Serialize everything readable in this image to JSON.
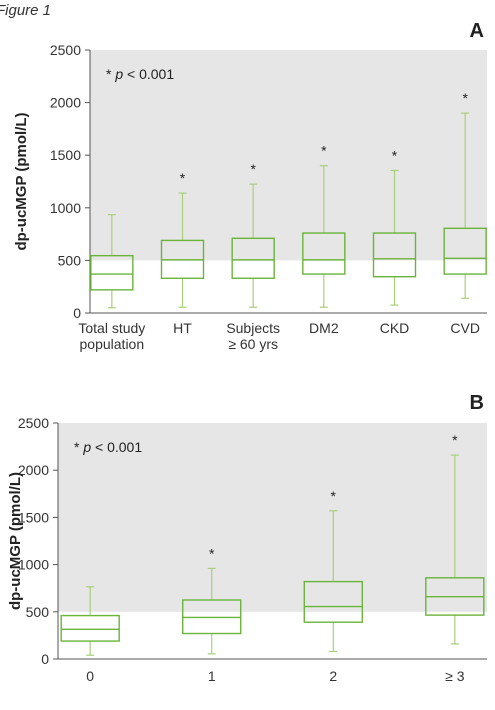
{
  "figure_label": "Figure 1",
  "chart_data": [
    {
      "type": "boxplot",
      "panel": "A",
      "ylabel": "dp-ucMGP (pmol/L)",
      "ylim": [
        0,
        2500
      ],
      "yticks": [
        0,
        500,
        1000,
        1500,
        2000,
        2500
      ],
      "background": "#e6e6e6",
      "box_color": "#6ab43a",
      "whisker_color": "#a8cf7a",
      "annotation": {
        "star": "* ",
        "p": "p",
        "rest": " < 0.001"
      },
      "categories": [
        {
          "lines": [
            "Total study",
            "population"
          ],
          "whisker_low": 50,
          "q1": 220,
          "median": 370,
          "q3": 545,
          "whisker_high": 935,
          "significant": false
        },
        {
          "lines": [
            "HT"
          ],
          "whisker_low": 55,
          "q1": 330,
          "median": 505,
          "q3": 690,
          "whisker_high": 1140,
          "significant": true
        },
        {
          "lines": [
            "Subjects",
            "≥ 60 yrs"
          ],
          "whisker_low": 55,
          "q1": 330,
          "median": 505,
          "q3": 710,
          "whisker_high": 1225,
          "significant": true
        },
        {
          "lines": [
            "DM2"
          ],
          "whisker_low": 55,
          "q1": 370,
          "median": 505,
          "q3": 760,
          "whisker_high": 1400,
          "significant": true
        },
        {
          "lines": [
            "CKD"
          ],
          "whisker_low": 75,
          "q1": 345,
          "median": 515,
          "q3": 760,
          "whisker_high": 1355,
          "significant": true
        },
        {
          "lines": [
            "CVD"
          ],
          "whisker_low": 140,
          "q1": 370,
          "median": 520,
          "q3": 805,
          "whisker_high": 1900,
          "significant": true
        }
      ]
    },
    {
      "type": "boxplot",
      "panel": "B",
      "ylabel": "dp-ucMGP (pmol/L)",
      "ylim": [
        0,
        2500
      ],
      "yticks": [
        0,
        500,
        1000,
        1500,
        2000,
        2500
      ],
      "background": "#e6e6e6",
      "box_color": "#6ab43a",
      "whisker_color": "#a8cf7a",
      "annotation": {
        "star": "* ",
        "p": "p",
        "rest": " < 0.001"
      },
      "categories": [
        {
          "lines": [
            "0"
          ],
          "whisker_low": 40,
          "q1": 190,
          "median": 315,
          "q3": 460,
          "whisker_high": 765,
          "significant": false
        },
        {
          "lines": [
            "1"
          ],
          "whisker_low": 55,
          "q1": 270,
          "median": 440,
          "q3": 625,
          "whisker_high": 960,
          "significant": true
        },
        {
          "lines": [
            "2"
          ],
          "whisker_low": 80,
          "q1": 390,
          "median": 555,
          "q3": 820,
          "whisker_high": 1570,
          "significant": true
        },
        {
          "lines": [
            "≥ 3"
          ],
          "whisker_low": 160,
          "q1": 465,
          "median": 660,
          "q3": 860,
          "whisker_high": 2160,
          "significant": true
        }
      ]
    }
  ]
}
